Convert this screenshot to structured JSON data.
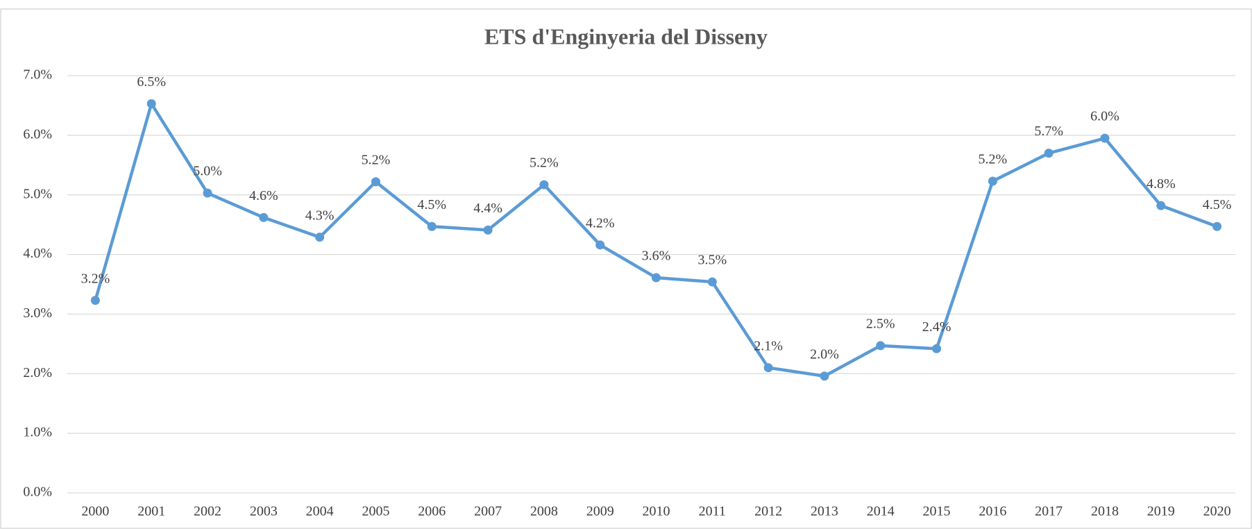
{
  "chart_data": {
    "type": "line",
    "title": "ETS d'Enginyeria del Disseny",
    "categories": [
      "2000",
      "2001",
      "2002",
      "2003",
      "2004",
      "2005",
      "2006",
      "2007",
      "2008",
      "2009",
      "2010",
      "2011",
      "2012",
      "2013",
      "2014",
      "2015",
      "2016",
      "2017",
      "2018",
      "2019",
      "2020"
    ],
    "series": [
      {
        "name": "ETS d'Enginyeria del Disseny",
        "color": "#5b9bd5",
        "values": [
          3.23,
          6.53,
          5.03,
          4.62,
          4.29,
          5.22,
          4.47,
          4.41,
          5.17,
          4.16,
          3.61,
          3.54,
          2.1,
          1.96,
          2.47,
          2.42,
          5.23,
          5.7,
          5.95,
          4.82,
          4.47
        ],
        "value_labels": [
          "3.2%",
          "6.5%",
          "5.0%",
          "4.6%",
          "4.3%",
          "5.2%",
          "4.5%",
          "4.4%",
          "5.2%",
          "4.2%",
          "3.6%",
          "3.5%",
          "2.1%",
          "2.0%",
          "2.5%",
          "2.4%",
          "5.2%",
          "5.7%",
          "6.0%",
          "4.8%",
          "4.5%"
        ]
      }
    ],
    "ylim": [
      0,
      7
    ],
    "yticks": [
      {
        "value": 0,
        "label": "0.0%"
      },
      {
        "value": 1,
        "label": "1.0%"
      },
      {
        "value": 2,
        "label": "2.0%"
      },
      {
        "value": 3,
        "label": "3.0%"
      },
      {
        "value": 4,
        "label": "4.0%"
      },
      {
        "value": 5,
        "label": "5.0%"
      },
      {
        "value": 6,
        "label": "6.0%"
      },
      {
        "value": 7,
        "label": "7.0%"
      }
    ],
    "grid": true
  }
}
